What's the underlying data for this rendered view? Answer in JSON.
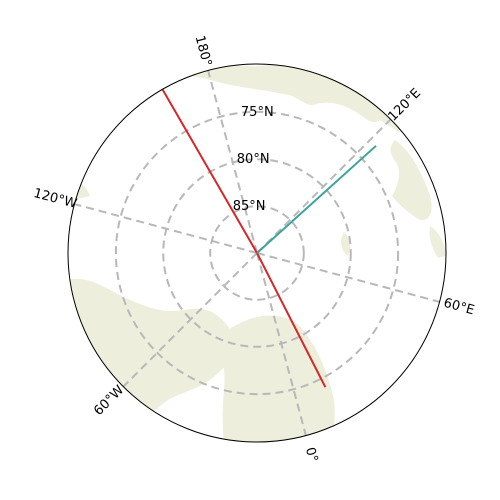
{
  "map": {
    "projection": "north-polar-stereographic",
    "boundary_latitude": 70,
    "colors": {
      "land": "#eeeedc",
      "graticule": "#b8b8b8",
      "boundary": "#000000",
      "red_line": "#d62728",
      "teal_line": "#3aa39a"
    },
    "meridian_labels": [
      {
        "text": "120°E",
        "lon": 120
      },
      {
        "text": "60°E",
        "lon": 60
      },
      {
        "text": "0°",
        "lon": 0
      },
      {
        "text": "60°W",
        "lon": -60
      },
      {
        "text": "120°W",
        "lon": -120
      },
      {
        "text": "180°",
        "lon": 180
      }
    ],
    "parallel_labels": [
      {
        "text": "75°N",
        "lat": 75
      },
      {
        "text": "80°N",
        "lat": 80
      },
      {
        "text": "85°N",
        "lat": 85
      }
    ],
    "lines": [
      {
        "name": "red-line-a",
        "color_key": "red_line",
        "points": [
          [
            90,
            0
          ],
          [
            70,
            -165
          ]
        ]
      },
      {
        "name": "red-line-b",
        "color_key": "red_line",
        "points": [
          [
            90,
            0
          ],
          [
            74,
            12
          ]
        ]
      },
      {
        "name": "teal-line",
        "color_key": "teal_line",
        "points": [
          [
            90,
            0
          ],
          [
            73,
            117
          ]
        ]
      }
    ]
  }
}
